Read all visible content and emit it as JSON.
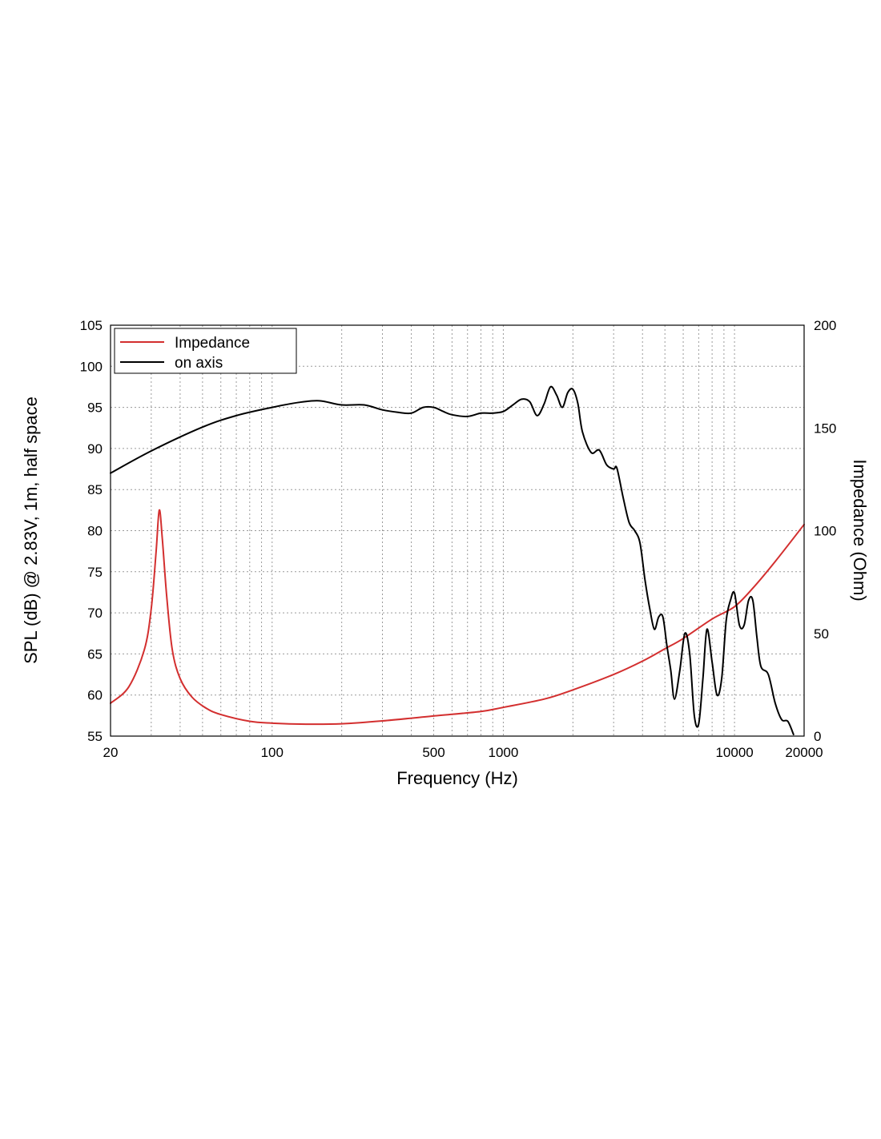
{
  "chart_data": {
    "type": "line",
    "xlabel": "Frequency (Hz)",
    "ylabel_left": "SPL (dB) @ 2.83V, 1m, half space",
    "ylabel_right": "Impedance (Ohm)",
    "x_scale": "log",
    "xlim": [
      20,
      20000
    ],
    "ylim_left": [
      55,
      105
    ],
    "ylim_right": [
      0,
      200
    ],
    "x_ticks": [
      20,
      100,
      500,
      1000,
      10000,
      20000
    ],
    "x_tick_labels": [
      "20",
      "100",
      "500",
      "1000",
      "10000",
      "20000"
    ],
    "y_ticks_left": [
      55,
      60,
      65,
      70,
      75,
      80,
      85,
      90,
      95,
      100,
      105
    ],
    "y_ticks_right": [
      0,
      50,
      100,
      150,
      200
    ],
    "grid": true,
    "legend_position": "top-left",
    "series": [
      {
        "name": "Impedance",
        "axis": "right",
        "color": "#d32f2f",
        "x": [
          20,
          24,
          28,
          30,
          31.5,
          32.5,
          33.5,
          35,
          37,
          40,
          45,
          52,
          60,
          80,
          100,
          140,
          200,
          300,
          500,
          800,
          1000,
          1500,
          2000,
          3000,
          4000,
          5000,
          6000,
          8000,
          10000,
          12000,
          15000,
          20000
        ],
        "y": [
          16,
          24,
          42,
          62,
          90,
          110,
          96,
          68,
          42,
          28,
          19,
          13.5,
          10.5,
          7.2,
          6.3,
          5.8,
          6,
          7.4,
          9.8,
          12,
          14,
          18,
          22.5,
          30,
          36.5,
          42.5,
          47.5,
          57,
          63,
          72,
          85,
          103
        ]
      },
      {
        "name": "on axis",
        "axis": "left",
        "color": "#000000",
        "x": [
          20,
          30,
          50,
          70,
          100,
          130,
          160,
          200,
          250,
          300,
          350,
          400,
          450,
          500,
          550,
          600,
          700,
          800,
          900,
          1000,
          1100,
          1200,
          1300,
          1400,
          1500,
          1600,
          1700,
          1800,
          1900,
          2000,
          2100,
          2200,
          2400,
          2600,
          2800,
          3000,
          3100,
          3300,
          3500,
          3700,
          3900,
          4100,
          4300,
          4500,
          4700,
          4900,
          5100,
          5300,
          5500,
          5800,
          6100,
          6400,
          6700,
          7000,
          7300,
          7600,
          8000,
          8400,
          8800,
          9200,
          9600,
          10000,
          10500,
          11000,
          11500,
          12000,
          12500,
          13000,
          14000,
          15000,
          16000,
          17000,
          18000
        ],
        "y": [
          87,
          89.7,
          92.6,
          94,
          95,
          95.6,
          95.8,
          95.3,
          95.3,
          94.7,
          94.4,
          94.3,
          95,
          95,
          94.5,
          94.1,
          93.9,
          94.3,
          94.3,
          94.5,
          95.3,
          96,
          95.7,
          94,
          95.4,
          97.5,
          96.5,
          95,
          96.8,
          97.2,
          95.5,
          92,
          89.5,
          89.8,
          88,
          87.5,
          87.6,
          84,
          81,
          80,
          78.5,
          74,
          70.5,
          68,
          69.5,
          69.5,
          66,
          63,
          59.5,
          63,
          67.5,
          65,
          57.5,
          56.5,
          62,
          68,
          64,
          60,
          62,
          69,
          71.5,
          72.4,
          68.5,
          68.5,
          71.5,
          71.5,
          67,
          63.5,
          62.5,
          59,
          57,
          56.8,
          55.2
        ]
      }
    ]
  }
}
